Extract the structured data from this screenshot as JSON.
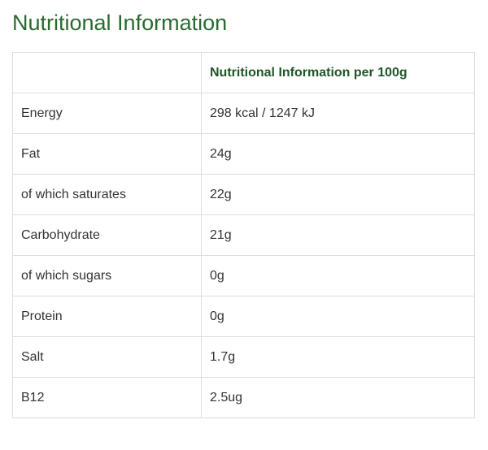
{
  "page": {
    "title": "Nutritional Information"
  },
  "table": {
    "header": {
      "name": "",
      "value": "Nutritional Information per 100g"
    },
    "rows": [
      {
        "name": "Energy",
        "value": "298 kcal / 1247 kJ"
      },
      {
        "name": "Fat",
        "value": "24g"
      },
      {
        "name": "of which saturates",
        "value": "22g"
      },
      {
        "name": "Carbohydrate",
        "value": "21g"
      },
      {
        "name": "of which sugars",
        "value": "0g"
      },
      {
        "name": "Protein",
        "value": "0g"
      },
      {
        "name": "Salt",
        "value": "1.7g"
      },
      {
        "name": "B12",
        "value": "2.5ug"
      }
    ]
  },
  "colors": {
    "title": "#2a6a31",
    "header_text": "#1f5627",
    "body_text": "#333333",
    "border": "#dddddd"
  }
}
